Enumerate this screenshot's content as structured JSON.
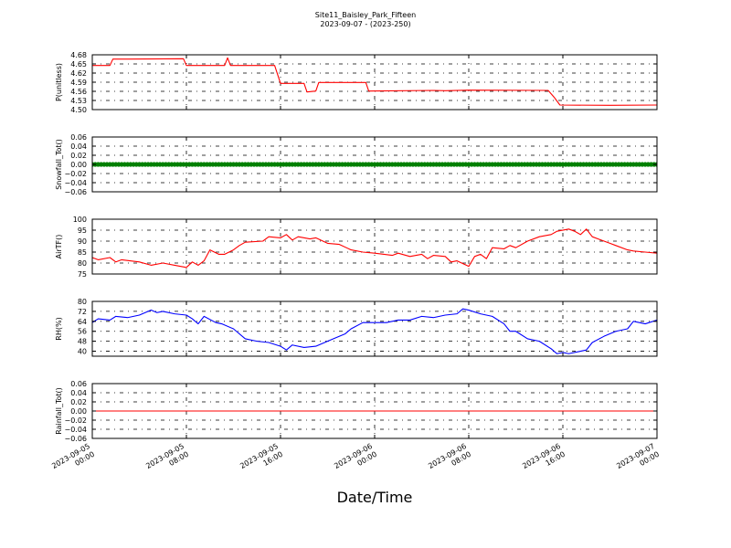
{
  "figure": {
    "title_line1": "Site11_Baisley_Park_Fifteen",
    "title_line2": "2023-09-07 - (2023-250)",
    "xlabel": "Date/Time"
  },
  "x_axis": {
    "range": [
      "2023-09-05 00:00",
      "2023-09-07 00:00"
    ],
    "ticks": [
      {
        "value": "2023-09-05 00:00",
        "line1": "2023-09-05",
        "line2": "00:00"
      },
      {
        "value": "2023-09-05 08:00",
        "line1": "2023-09-05",
        "line2": "08:00"
      },
      {
        "value": "2023-09-05 16:00",
        "line1": "2023-09-05",
        "line2": "16:00"
      },
      {
        "value": "2023-09-06 00:00",
        "line1": "2023-09-06",
        "line2": "00:00"
      },
      {
        "value": "2023-09-06 08:00",
        "line1": "2023-09-06",
        "line2": "08:00"
      },
      {
        "value": "2023-09-06 16:00",
        "line1": "2023-09-06",
        "line2": "16:00"
      },
      {
        "value": "2023-09-07 00:00",
        "line1": "2023-09-07",
        "line2": "00:00"
      }
    ]
  },
  "chart_data": [
    {
      "type": "line",
      "ylabel": "P(unitless)",
      "ylim": [
        4.5,
        4.68
      ],
      "yticks": [
        "4.68",
        "4.65",
        "4.62",
        "4.59",
        "4.56",
        "4.53",
        "4.50"
      ],
      "ytick_values": [
        4.68,
        4.65,
        4.62,
        4.59,
        4.56,
        4.53,
        4.5
      ],
      "grid": true,
      "series": [
        {
          "color": "#ff0000",
          "marker": "none",
          "points": [
            [
              "2023-09-05 00:00",
              4.645
            ],
            [
              "2023-09-05 01:30",
              4.645
            ],
            [
              "2023-09-05 01:45",
              4.666
            ],
            [
              "2023-09-05 03:00",
              4.666
            ],
            [
              "2023-09-05 07:45",
              4.667
            ],
            [
              "2023-09-05 08:00",
              4.645
            ],
            [
              "2023-09-05 11:15",
              4.645
            ],
            [
              "2023-09-05 11:30",
              4.67
            ],
            [
              "2023-09-05 11:45",
              4.645
            ],
            [
              "2023-09-05 15:30",
              4.645
            ],
            [
              "2023-09-05 16:00",
              4.586
            ],
            [
              "2023-09-05 18:00",
              4.586
            ],
            [
              "2023-09-05 18:15",
              4.558
            ],
            [
              "2023-09-05 19:00",
              4.561
            ],
            [
              "2023-09-05 19:15",
              4.589
            ],
            [
              "2023-09-05 23:15",
              4.589
            ],
            [
              "2023-09-05 23:30",
              4.561
            ],
            [
              "2023-09-06 05:00",
              4.563
            ],
            [
              "2023-09-06 06:00",
              4.562
            ],
            [
              "2023-09-06 08:00",
              4.564
            ],
            [
              "2023-09-06 14:45",
              4.563
            ],
            [
              "2023-09-06 15:15",
              4.541
            ],
            [
              "2023-09-06 15:45",
              4.515
            ],
            [
              "2023-09-06 20:00",
              4.514
            ],
            [
              "2023-09-07 00:00",
              4.515
            ]
          ]
        }
      ]
    },
    {
      "type": "scatter",
      "ylabel": "Snowfall_Tot()",
      "ylim": [
        -0.06,
        0.06
      ],
      "yticks": [
        "0.06",
        "0.04",
        "0.02",
        "0.00",
        "−0.02",
        "−0.04",
        "−0.06"
      ],
      "ytick_values": [
        0.06,
        0.04,
        0.02,
        0.0,
        -0.02,
        -0.04,
        -0.06
      ],
      "grid": true,
      "series": [
        {
          "color": "#008000",
          "marker": "dot",
          "x_start": "2023-09-05 00:00",
          "x_end": "2023-09-07 00:00",
          "interval_minutes": 15,
          "constant_value": 0.0
        }
      ]
    },
    {
      "type": "line",
      "ylabel": "AirTF()",
      "ylim": [
        75,
        100
      ],
      "yticks": [
        "100",
        "95",
        "90",
        "85",
        "80",
        "75"
      ],
      "ytick_values": [
        100,
        95,
        90,
        85,
        80,
        75
      ],
      "grid": true,
      "series": [
        {
          "color": "#ff0000",
          "marker": "none",
          "points": [
            [
              "2023-09-05 00:00",
              82.5
            ],
            [
              "2023-09-05 00:30",
              81.5
            ],
            [
              "2023-09-05 01:30",
              82.5
            ],
            [
              "2023-09-05 02:00",
              80.5
            ],
            [
              "2023-09-05 02:30",
              81.5
            ],
            [
              "2023-09-05 04:00",
              80.5
            ],
            [
              "2023-09-05 05:00",
              79
            ],
            [
              "2023-09-05 06:00",
              80
            ],
            [
              "2023-09-05 07:00",
              79
            ],
            [
              "2023-09-05 08:00",
              78
            ],
            [
              "2023-09-05 08:30",
              80.5
            ],
            [
              "2023-09-05 09:00",
              79
            ],
            [
              "2023-09-05 09:30",
              81
            ],
            [
              "2023-09-05 10:00",
              86
            ],
            [
              "2023-09-05 10:45",
              84
            ],
            [
              "2023-09-05 11:15",
              84
            ],
            [
              "2023-09-05 12:00",
              86
            ],
            [
              "2023-09-05 12:30",
              88
            ],
            [
              "2023-09-05 13:00",
              89.5
            ],
            [
              "2023-09-05 14:30",
              90
            ],
            [
              "2023-09-05 15:00",
              92
            ],
            [
              "2023-09-05 16:00",
              91.5
            ],
            [
              "2023-09-05 16:30",
              93
            ],
            [
              "2023-09-05 17:00",
              90.5
            ],
            [
              "2023-09-05 17:30",
              92
            ],
            [
              "2023-09-05 18:30",
              91
            ],
            [
              "2023-09-05 19:00",
              91.5
            ],
            [
              "2023-09-05 20:00",
              89
            ],
            [
              "2023-09-05 21:00",
              88.5
            ],
            [
              "2023-09-05 22:00",
              86
            ],
            [
              "2023-09-05 23:00",
              85
            ],
            [
              "2023-09-06 00:00",
              84.5
            ],
            [
              "2023-09-06 01:30",
              83.5
            ],
            [
              "2023-09-06 02:00",
              84.5
            ],
            [
              "2023-09-06 03:00",
              83
            ],
            [
              "2023-09-06 04:00",
              84
            ],
            [
              "2023-09-06 04:30",
              82
            ],
            [
              "2023-09-06 05:00",
              83.5
            ],
            [
              "2023-09-06 06:00",
              83
            ],
            [
              "2023-09-06 06:30",
              80.5
            ],
            [
              "2023-09-06 07:00",
              81
            ],
            [
              "2023-09-06 08:00",
              78.5
            ],
            [
              "2023-09-06 08:30",
              83
            ],
            [
              "2023-09-06 09:00",
              84
            ],
            [
              "2023-09-06 09:30",
              82
            ],
            [
              "2023-09-06 10:00",
              87
            ],
            [
              "2023-09-06 11:00",
              86.5
            ],
            [
              "2023-09-06 11:30",
              88
            ],
            [
              "2023-09-06 12:00",
              87
            ],
            [
              "2023-09-06 13:00",
              90
            ],
            [
              "2023-09-06 14:00",
              92
            ],
            [
              "2023-09-06 15:00",
              93
            ],
            [
              "2023-09-06 15:30",
              94.5
            ],
            [
              "2023-09-06 16:30",
              95.5
            ],
            [
              "2023-09-06 17:00",
              94.5
            ],
            [
              "2023-09-06 17:30",
              93
            ],
            [
              "2023-09-06 18:00",
              95.5
            ],
            [
              "2023-09-06 18:30",
              92
            ],
            [
              "2023-09-06 19:00",
              91
            ],
            [
              "2023-09-06 20:00",
              89
            ],
            [
              "2023-09-06 20:30",
              88
            ],
            [
              "2023-09-06 21:30",
              86
            ],
            [
              "2023-09-06 22:00",
              85.5
            ],
            [
              "2023-09-06 23:00",
              85
            ],
            [
              "2023-09-07 00:00",
              84.5
            ]
          ]
        }
      ]
    },
    {
      "type": "line",
      "ylabel": "RH(%)",
      "ylim": [
        36,
        80
      ],
      "yticks": [
        "80",
        "72",
        "64",
        "56",
        "48",
        "40"
      ],
      "ytick_values": [
        80,
        72,
        64,
        56,
        48,
        40
      ],
      "grid": true,
      "series": [
        {
          "color": "#0000ff",
          "marker": "none",
          "points": [
            [
              "2023-09-05 00:00",
              63
            ],
            [
              "2023-09-05 00:30",
              66
            ],
            [
              "2023-09-05 01:30",
              65
            ],
            [
              "2023-09-05 02:00",
              68
            ],
            [
              "2023-09-05 03:00",
              67
            ],
            [
              "2023-09-05 04:00",
              69
            ],
            [
              "2023-09-05 05:00",
              73
            ],
            [
              "2023-09-05 05:30",
              71
            ],
            [
              "2023-09-05 06:00",
              72
            ],
            [
              "2023-09-05 07:00",
              70
            ],
            [
              "2023-09-05 08:00",
              69
            ],
            [
              "2023-09-05 08:30",
              66
            ],
            [
              "2023-09-05 09:00",
              62
            ],
            [
              "2023-09-05 09:30",
              68
            ],
            [
              "2023-09-05 10:30",
              63
            ],
            [
              "2023-09-05 11:00",
              62
            ],
            [
              "2023-09-05 12:00",
              58
            ],
            [
              "2023-09-05 13:00",
              50
            ],
            [
              "2023-09-05 14:00",
              48
            ],
            [
              "2023-09-05 15:00",
              47
            ],
            [
              "2023-09-05 16:00",
              44
            ],
            [
              "2023-09-05 16:30",
              41
            ],
            [
              "2023-09-05 17:00",
              45
            ],
            [
              "2023-09-05 18:00",
              43
            ],
            [
              "2023-09-05 19:00",
              44
            ],
            [
              "2023-09-05 19:30",
              46
            ],
            [
              "2023-09-05 20:30",
              50
            ],
            [
              "2023-09-05 21:30",
              54
            ],
            [
              "2023-09-05 22:00",
              58
            ],
            [
              "2023-09-05 23:00",
              63
            ],
            [
              "2023-09-06 00:00",
              63
            ],
            [
              "2023-09-06 01:00",
              63
            ],
            [
              "2023-09-06 02:00",
              65
            ],
            [
              "2023-09-06 03:00",
              65
            ],
            [
              "2023-09-06 04:00",
              68
            ],
            [
              "2023-09-06 05:00",
              67
            ],
            [
              "2023-09-06 06:00",
              69
            ],
            [
              "2023-09-06 07:00",
              70
            ],
            [
              "2023-09-06 07:30",
              74
            ],
            [
              "2023-09-06 08:00",
              73
            ],
            [
              "2023-09-06 09:00",
              70
            ],
            [
              "2023-09-06 10:00",
              68
            ],
            [
              "2023-09-06 11:00",
              62
            ],
            [
              "2023-09-06 11:30",
              56
            ],
            [
              "2023-09-06 12:00",
              56
            ],
            [
              "2023-09-06 13:00",
              50
            ],
            [
              "2023-09-06 14:00",
              48
            ],
            [
              "2023-09-06 15:00",
              42
            ],
            [
              "2023-09-06 15:30",
              38
            ],
            [
              "2023-09-06 16:00",
              39
            ],
            [
              "2023-09-06 16:30",
              38
            ],
            [
              "2023-09-06 17:30",
              40
            ],
            [
              "2023-09-06 18:00",
              41
            ],
            [
              "2023-09-06 18:30",
              47
            ],
            [
              "2023-09-06 19:30",
              52
            ],
            [
              "2023-09-06 20:30",
              56
            ],
            [
              "2023-09-06 21:30",
              58
            ],
            [
              "2023-09-06 22:00",
              64
            ],
            [
              "2023-09-06 23:00",
              62
            ],
            [
              "2023-09-07 00:00",
              65
            ]
          ]
        }
      ]
    },
    {
      "type": "line",
      "ylabel": "Rainfall_Tot()",
      "ylim": [
        -0.06,
        0.06
      ],
      "yticks": [
        "0.06",
        "0.04",
        "0.02",
        "0.00",
        "−0.02",
        "−0.04",
        "−0.06"
      ],
      "ytick_values": [
        0.06,
        0.04,
        0.02,
        0.0,
        -0.02,
        -0.04,
        -0.06
      ],
      "grid": true,
      "series": [
        {
          "color": "#ff0000",
          "marker": "none",
          "points": [
            [
              "2023-09-05 00:00",
              0.0
            ],
            [
              "2023-09-07 00:00",
              0.0
            ]
          ]
        }
      ]
    }
  ]
}
